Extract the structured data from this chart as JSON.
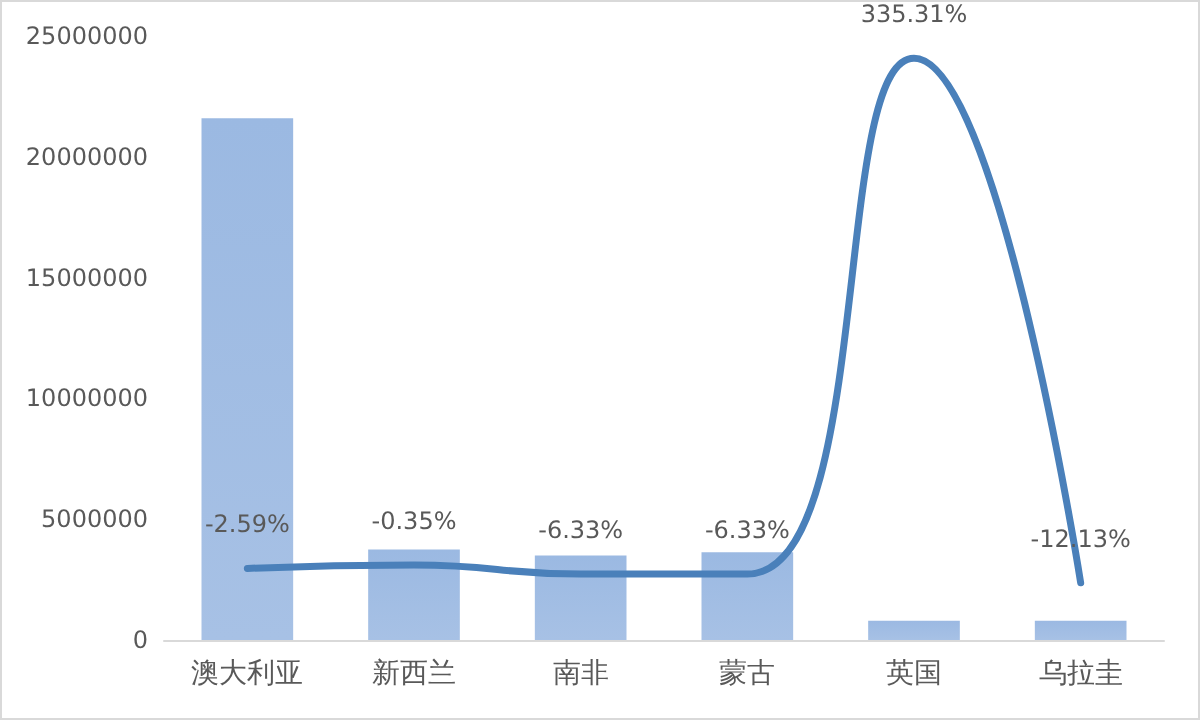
{
  "chart_data": {
    "type": "bar",
    "categories": [
      "澳大利亚",
      "新西兰",
      "南非",
      "蒙古",
      "英国",
      "乌拉圭"
    ],
    "series": [
      {
        "color": "#9bb9e2",
        "values": [
          21600000,
          3750000,
          3500000,
          3630000,
          800000,
          800000
        ]
      },
      {
        "type": "line",
        "axis": "y2",
        "color": "#4a80ba",
        "values": [
          -2.59,
          -0.35,
          -6.33,
          -6.33,
          335.31,
          -12.13
        ],
        "value_labels": [
          "-2.59%",
          "-0.35%",
          "-6.33%",
          "-6.33%",
          "335.31%",
          "-12.13%"
        ]
      }
    ],
    "ylim": [
      0,
      25000000
    ],
    "yticks": [
      0,
      5000000,
      10000000,
      15000000,
      20000000,
      25000000
    ],
    "grid": false,
    "marker": "none"
  }
}
